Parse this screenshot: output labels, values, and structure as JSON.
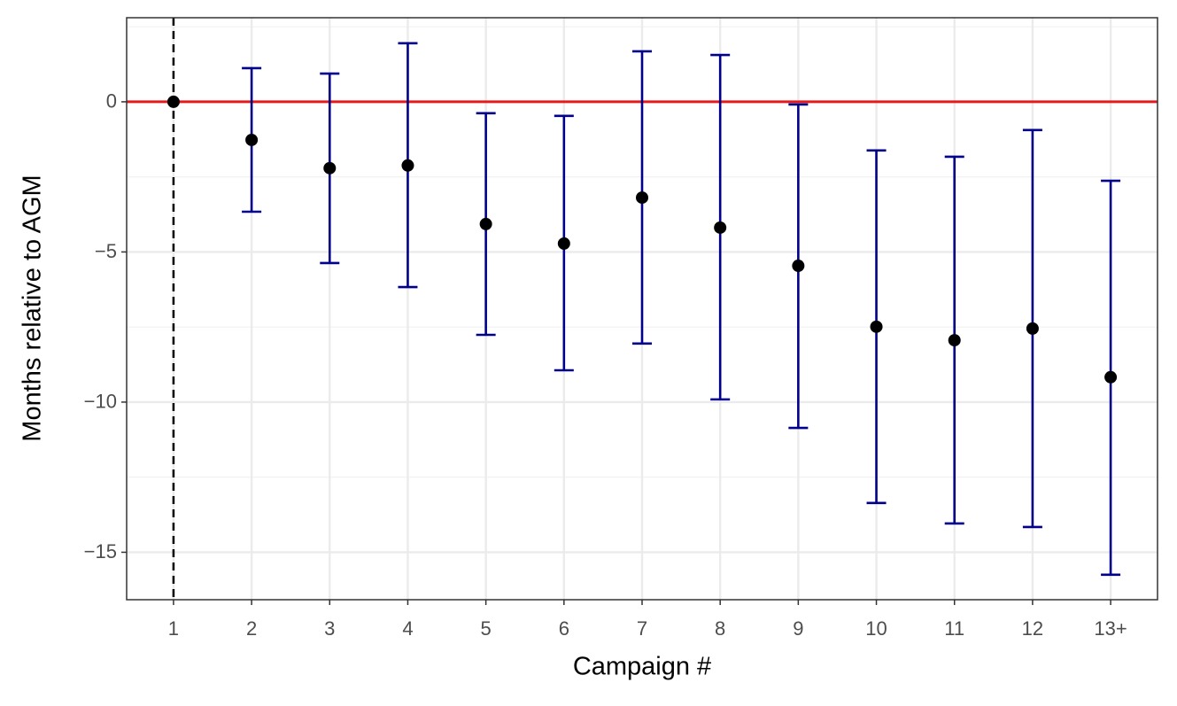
{
  "chart_data": {
    "type": "errorbar",
    "x_label": "Campaign #",
    "y_label": "Months relative to AGM",
    "categories": [
      "1",
      "2",
      "3",
      "4",
      "5",
      "6",
      "7",
      "8",
      "9",
      "10",
      "11",
      "12",
      "13+"
    ],
    "values": [
      0,
      -1.27,
      -2.21,
      -2.12,
      -4.07,
      -4.72,
      -3.19,
      -4.19,
      -5.46,
      -7.49,
      -7.94,
      -7.55,
      -9.17
    ],
    "lower": [
      null,
      -3.66,
      -5.37,
      -6.17,
      -7.76,
      -8.94,
      -8.05,
      -9.91,
      -10.86,
      -13.36,
      -14.04,
      -14.16,
      -15.75
    ],
    "upper": [
      null,
      1.12,
      0.94,
      1.95,
      -0.38,
      -0.47,
      1.68,
      1.56,
      -0.09,
      -1.62,
      -1.83,
      -0.94,
      -2.63
    ],
    "point_color": "#000000",
    "errorbar_color": "#00008b",
    "ylim": [
      -16.58,
      2.8
    ],
    "yticks": [
      {
        "value": -15,
        "label": "−15"
      },
      {
        "value": -10,
        "label": "−10"
      },
      {
        "value": -5,
        "label": "−5"
      },
      0
    ],
    "minor_yticks": [
      -12.5,
      -7.5,
      -2.5,
      2.5
    ],
    "grid": true,
    "hline": 0,
    "hline_color": "#e41a1c",
    "vline": "1"
  }
}
